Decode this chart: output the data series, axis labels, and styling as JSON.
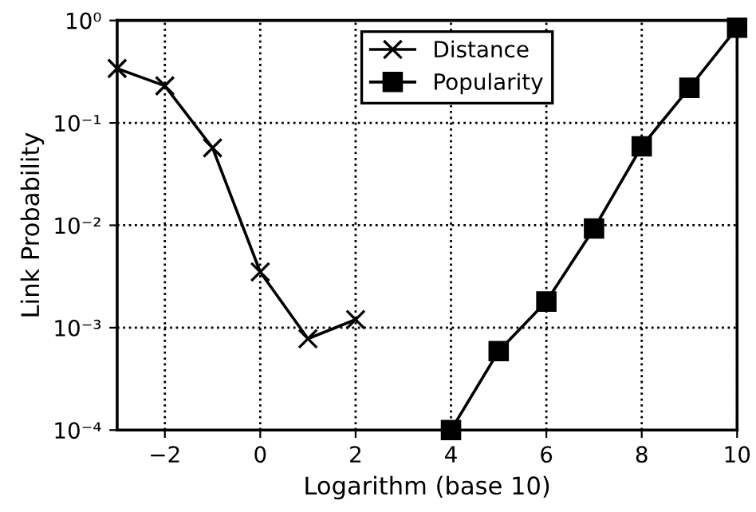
{
  "chart_data": {
    "type": "line",
    "xlabel": "Logarithm (base 10)",
    "ylabel": "Link Probability",
    "log": "y",
    "grid": true,
    "legend": "top right",
    "line_style": "solid",
    "xlim": [
      -3,
      10
    ],
    "ylim": [
      0.0001,
      1
    ],
    "xticks": [
      {
        "value": -2,
        "label": "−2"
      },
      0,
      2,
      4,
      6,
      8,
      10
    ],
    "yticks": [
      {
        "value": 0.0001,
        "label": "10⁻⁴"
      },
      {
        "value": 0.001,
        "label": "10⁻³"
      },
      {
        "value": 0.01,
        "label": "10⁻²"
      },
      {
        "value": 0.1,
        "label": "10⁻¹"
      },
      {
        "value": 1,
        "label": "10⁰"
      }
    ],
    "series": [
      {
        "name": "Distance",
        "color": "#000000",
        "marker": "cross",
        "x": [
          -3,
          -2,
          -1,
          0,
          1,
          2
        ],
        "values": [
          0.34,
          0.23,
          0.057,
          0.0035,
          0.00078,
          0.0012
        ]
      },
      {
        "name": "Popularity",
        "color": "#000000",
        "marker": "square",
        "x": [
          4,
          5,
          6,
          7,
          8,
          9,
          10
        ],
        "values": [
          0.0001,
          0.00059,
          0.0018,
          0.0093,
          0.059,
          0.22,
          0.85
        ]
      }
    ]
  }
}
